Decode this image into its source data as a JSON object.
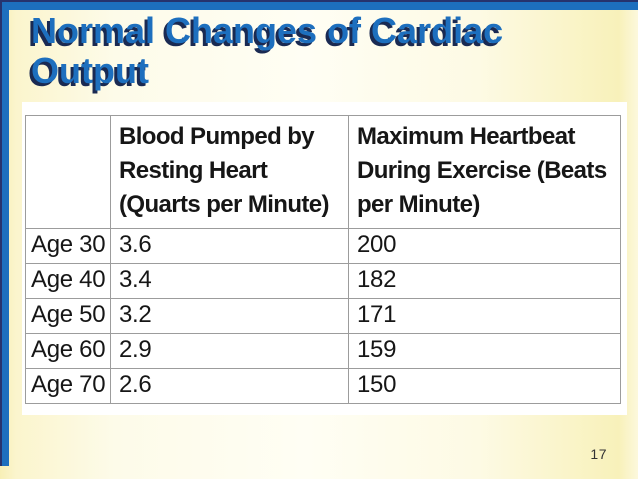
{
  "slide": {
    "title": "Normal Changes of Cardiac\nOutput",
    "page_number": "17",
    "colors": {
      "frame_blue": "#1d6fbe",
      "frame_navy": "#26336e",
      "title_blue": "#1d6fbe",
      "title_shadow": "#1a2a52",
      "background_cream": "#fdfbe9",
      "background_yellow": "#f7efb6",
      "content_box": "#ffffff",
      "table_border": "#9c9c9c"
    }
  },
  "table": {
    "columns": [
      "",
      "Blood Pumped by\nResting Heart\n(Quarts per Minute)",
      "Maximum Heartbeat\nDuring Exercise (Beats\nper Minute)"
    ],
    "rows": [
      {
        "age": "Age 30",
        "blood_pumped": "3.6",
        "max_heartbeat": "200"
      },
      {
        "age": "Age 40",
        "blood_pumped": "3.4",
        "max_heartbeat": "182"
      },
      {
        "age": "Age 50",
        "blood_pumped": "3.2",
        "max_heartbeat": "171"
      },
      {
        "age": "Age 60",
        "blood_pumped": "2.9",
        "max_heartbeat": "159"
      },
      {
        "age": "Age 70",
        "blood_pumped": "2.6",
        "max_heartbeat": "150"
      }
    ]
  }
}
